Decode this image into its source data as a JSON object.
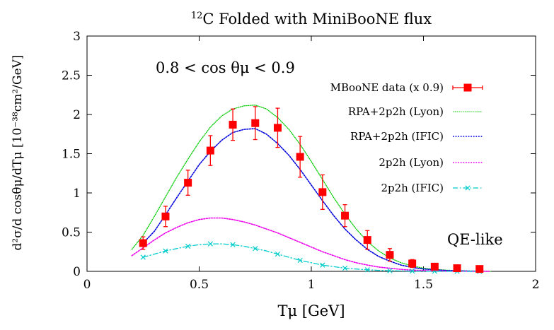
{
  "chart_data": {
    "type": "line",
    "title_sup": "12",
    "title": "C Folded with MiniBooNE flux",
    "annotation": "0.8 < cos θμ < 0.9",
    "corner_label": "QE-like",
    "xlabel": "Tμ [GeV]",
    "ylabel": "d²σ/d cosθμ/dTμ [10⁻³⁸cm²/GeV]",
    "xlim": [
      0,
      2
    ],
    "ylim": [
      0,
      3
    ],
    "xticks": [
      "0",
      "0.5",
      "1",
      "1.5",
      "2"
    ],
    "xtick_values": [
      0,
      0.5,
      1,
      1.5,
      2
    ],
    "yticks": [
      "0",
      "0.5",
      "1",
      "1.5",
      "2",
      "2.5",
      "3"
    ],
    "ytick_values": [
      0,
      0.5,
      1,
      1.5,
      2,
      2.5,
      3
    ],
    "legend_position": "top-right",
    "data_points": {
      "name": "MBooNE data (x 0.9)",
      "color": "#ff0000",
      "x": [
        0.25,
        0.35,
        0.45,
        0.55,
        0.65,
        0.75,
        0.85,
        0.95,
        1.05,
        1.15,
        1.25,
        1.35,
        1.45,
        1.55,
        1.65,
        1.75
      ],
      "y": [
        0.36,
        0.7,
        1.13,
        1.54,
        1.87,
        1.89,
        1.83,
        1.46,
        1.01,
        0.71,
        0.4,
        0.21,
        0.1,
        0.06,
        0.04,
        0.03
      ],
      "err": [
        0.08,
        0.13,
        0.16,
        0.19,
        0.2,
        0.21,
        0.25,
        0.26,
        0.22,
        0.14,
        0.12,
        0.08,
        0.05,
        0.03,
        0.02,
        0.01
      ]
    },
    "series": [
      {
        "name": "RPA+2p2h (Lyon)",
        "color": "#00cc00",
        "style": "dense-dot",
        "x": [
          0.2,
          0.25,
          0.3,
          0.35,
          0.4,
          0.45,
          0.5,
          0.55,
          0.6,
          0.65,
          0.7,
          0.75,
          0.8,
          0.85,
          0.9,
          0.95,
          1.0,
          1.05,
          1.1,
          1.15,
          1.2,
          1.25,
          1.3,
          1.35,
          1.4,
          1.45,
          1.5,
          1.55,
          1.6,
          1.65,
          1.7,
          1.75,
          1.8
        ],
        "y": [
          0.28,
          0.46,
          0.7,
          0.95,
          1.2,
          1.43,
          1.65,
          1.84,
          1.98,
          2.07,
          2.11,
          2.12,
          2.07,
          1.96,
          1.81,
          1.62,
          1.4,
          1.17,
          0.94,
          0.73,
          0.54,
          0.38,
          0.26,
          0.17,
          0.11,
          0.07,
          0.04,
          0.025,
          0.015,
          0.01,
          0.005,
          0.002,
          0.0
        ]
      },
      {
        "name": "RPA+2p2h (IFIC)",
        "color": "#0000dd",
        "style": "dotted",
        "x": [
          0.25,
          0.3,
          0.35,
          0.4,
          0.45,
          0.5,
          0.55,
          0.6,
          0.65,
          0.7,
          0.75,
          0.8,
          0.85,
          0.9,
          0.95,
          1.0,
          1.05,
          1.1,
          1.15,
          1.2,
          1.25,
          1.3,
          1.35,
          1.4,
          1.45,
          1.5,
          1.55,
          1.6,
          1.65,
          1.7,
          1.75
        ],
        "y": [
          0.36,
          0.51,
          0.72,
          0.94,
          1.15,
          1.36,
          1.53,
          1.67,
          1.77,
          1.81,
          1.82,
          1.75,
          1.63,
          1.48,
          1.3,
          1.1,
          0.9,
          0.71,
          0.54,
          0.4,
          0.28,
          0.19,
          0.13,
          0.08,
          0.05,
          0.03,
          0.02,
          0.012,
          0.007,
          0.004,
          0.002
        ]
      },
      {
        "name": "2p2h (Lyon)",
        "color": "#ee00ee",
        "style": "dotted",
        "x": [
          0.2,
          0.25,
          0.3,
          0.35,
          0.4,
          0.45,
          0.5,
          0.55,
          0.6,
          0.65,
          0.7,
          0.75,
          0.8,
          0.85,
          0.9,
          0.95,
          1.0,
          1.05,
          1.1,
          1.15,
          1.2,
          1.25,
          1.3,
          1.35,
          1.4,
          1.45,
          1.5,
          1.55,
          1.6,
          1.65,
          1.7,
          1.75,
          1.8
        ],
        "y": [
          0.2,
          0.3,
          0.4,
          0.49,
          0.56,
          0.62,
          0.66,
          0.68,
          0.68,
          0.66,
          0.63,
          0.59,
          0.54,
          0.49,
          0.43,
          0.37,
          0.31,
          0.25,
          0.2,
          0.15,
          0.11,
          0.08,
          0.055,
          0.04,
          0.025,
          0.015,
          0.01,
          0.006,
          0.004,
          0.002,
          0.001,
          0.0,
          0.0
        ]
      },
      {
        "name": "2p2h (IFIC)",
        "color": "#00cccc",
        "style": "dash-dot",
        "x": [
          0.25,
          0.3,
          0.35,
          0.4,
          0.45,
          0.5,
          0.55,
          0.6,
          0.65,
          0.7,
          0.75,
          0.8,
          0.85,
          0.9,
          0.95,
          1.0,
          1.05,
          1.1,
          1.15,
          1.2,
          1.25,
          1.3,
          1.35,
          1.4,
          1.45,
          1.5,
          1.55,
          1.6,
          1.65,
          1.7,
          1.75
        ],
        "y": [
          0.18,
          0.22,
          0.26,
          0.29,
          0.32,
          0.34,
          0.35,
          0.35,
          0.34,
          0.32,
          0.29,
          0.26,
          0.22,
          0.18,
          0.14,
          0.11,
          0.08,
          0.06,
          0.04,
          0.03,
          0.02,
          0.013,
          0.008,
          0.005,
          0.003,
          0.002,
          0.001,
          0.0,
          0.0,
          0.0,
          0.0
        ],
        "marker_x": [
          0.25,
          0.35,
          0.45,
          0.55,
          0.65,
          0.75,
          0.85,
          0.95,
          1.05,
          1.15,
          1.25,
          1.35,
          1.45,
          1.55,
          1.65,
          1.75
        ],
        "marker_y": [
          0.18,
          0.26,
          0.32,
          0.35,
          0.34,
          0.29,
          0.22,
          0.14,
          0.08,
          0.04,
          0.02,
          0.008,
          0.003,
          0.001,
          0.0,
          0.0
        ]
      }
    ]
  }
}
